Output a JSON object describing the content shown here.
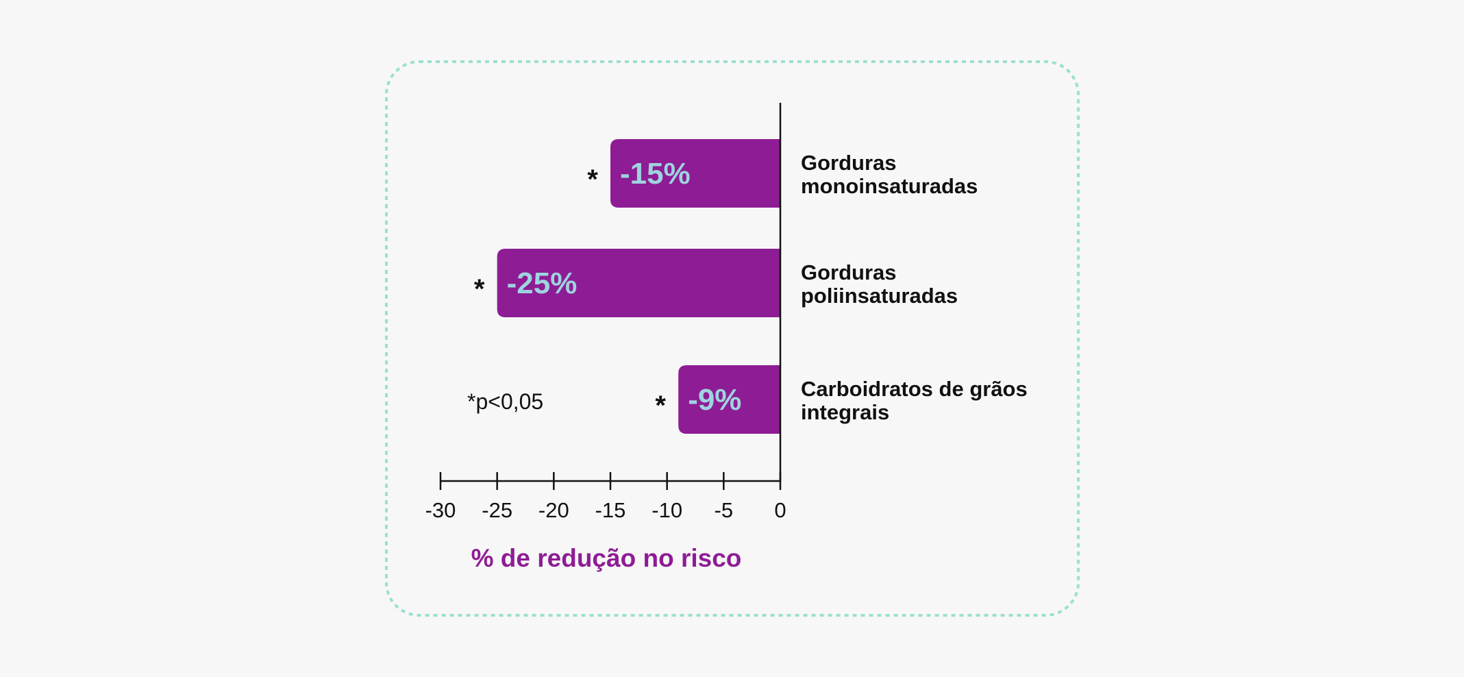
{
  "colors": {
    "background": "#f7f7f7",
    "bar": "#8e1c94",
    "bar_label": "#9ed3df",
    "frame": "#9ae0d0",
    "axis": "#111111",
    "xlabel": "#8e1c94",
    "text": "#111111"
  },
  "footnote": "*p<0,05",
  "chart_data": {
    "type": "bar",
    "orientation": "horizontal",
    "categories": [
      "Gorduras monoinsaturadas",
      "Gorduras poliinsaturadas",
      "Carboidratos de grãos integrais"
    ],
    "category_lines": [
      [
        "Gorduras",
        "monoinsaturadas"
      ],
      [
        "Gorduras",
        "poliinsaturadas"
      ],
      [
        "Carboidratos de grãos",
        "integrais"
      ]
    ],
    "values": [
      -15,
      -25,
      -9
    ],
    "data_labels": [
      "-15%",
      "-25%",
      "-9%"
    ],
    "significance": [
      "*",
      "*",
      "*"
    ],
    "xlabel": "% de redução no risco",
    "xlim": [
      -30,
      0
    ],
    "xticks": [
      -30,
      -25,
      -20,
      -15,
      -10,
      -5,
      0
    ],
    "xtick_labels": [
      "-30",
      "-25",
      "-20",
      "-15",
      "-10",
      "-5",
      "0"
    ],
    "legend": "none",
    "grid": false
  }
}
